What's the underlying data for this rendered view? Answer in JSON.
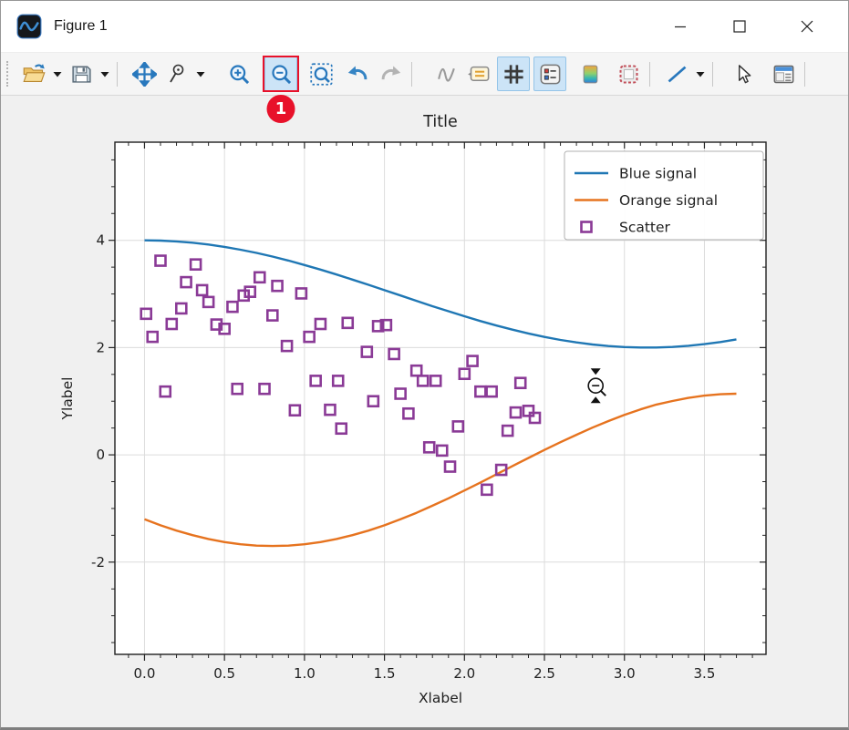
{
  "window": {
    "title": "Figure 1",
    "icon": "app-logo-icon",
    "controls": [
      {
        "name": "minimize-button",
        "icon": "minimize-icon"
      },
      {
        "name": "maximize-button",
        "icon": "maximize-icon"
      },
      {
        "name": "close-button",
        "icon": "close-icon"
      }
    ]
  },
  "toolbar": {
    "buttons": [
      {
        "type": "grip",
        "name": "toolbar-grip"
      },
      {
        "type": "button",
        "name": "open-figure-button",
        "icon": "folder-open-icon"
      },
      {
        "type": "arrow",
        "name": "open-figure-dropdown",
        "icon": "chevron-down-icon"
      },
      {
        "type": "button",
        "name": "save-figure-button",
        "icon": "save-icon"
      },
      {
        "type": "arrow",
        "name": "save-figure-dropdown",
        "icon": "chevron-down-icon"
      },
      {
        "type": "separator"
      },
      {
        "type": "button",
        "name": "pan-button",
        "icon": "pan-icon"
      },
      {
        "type": "button",
        "name": "zoom-tool-button",
        "icon": "zoom-rect-icon"
      },
      {
        "type": "arrow",
        "name": "zoom-tool-dropdown",
        "icon": "chevron-down-icon"
      },
      {
        "type": "button",
        "name": "zoom-in-button",
        "icon": "zoom-in-icon"
      },
      {
        "type": "button",
        "name": "zoom-out-button",
        "icon": "zoom-out-icon",
        "active": true,
        "annotated": true
      },
      {
        "type": "button",
        "name": "zoom-fit-button",
        "icon": "zoom-fit-icon"
      },
      {
        "type": "button",
        "name": "undo-button",
        "icon": "undo-icon"
      },
      {
        "type": "button",
        "name": "redo-button",
        "icon": "redo-icon",
        "disabled": true
      },
      {
        "type": "separator"
      },
      {
        "type": "button",
        "name": "curve-tool-button",
        "icon": "curve-icon",
        "disabled": true
      },
      {
        "type": "button",
        "name": "annotation-tool-button",
        "icon": "callout-icon"
      },
      {
        "type": "button",
        "name": "grid-toggle-button",
        "icon": "grid-icon",
        "active": true
      },
      {
        "type": "button",
        "name": "legend-toggle-button",
        "icon": "legend-icon",
        "active": true
      },
      {
        "type": "button",
        "name": "colormap-button",
        "icon": "colormap-icon"
      },
      {
        "type": "button",
        "name": "frame-style-button",
        "icon": "frame-icon"
      },
      {
        "type": "separator"
      },
      {
        "type": "button",
        "name": "line-style-button",
        "icon": "line-icon"
      },
      {
        "type": "arrow",
        "name": "line-style-dropdown",
        "icon": "chevron-down-icon"
      },
      {
        "type": "separator"
      },
      {
        "type": "button",
        "name": "select-pointer-button",
        "icon": "pointer-icon"
      },
      {
        "type": "button",
        "name": "figure-options-button",
        "icon": "panel-icon"
      },
      {
        "type": "separator"
      }
    ]
  },
  "annotation": {
    "step_label": "1",
    "color": "#e8112a"
  },
  "chart_data": {
    "type": "line",
    "title": "Title",
    "xlabel": "Xlabel",
    "ylabel": "Ylabel",
    "xlim": [
      -0.185,
      3.885
    ],
    "ylim": [
      -3.72,
      5.83
    ],
    "grid": true,
    "xticks": {
      "values": [
        0,
        0.5,
        1,
        1.5,
        2,
        2.5,
        3,
        3.5
      ],
      "labels": [
        "0.0",
        "0.5",
        "1.0",
        "1.5",
        "2.0",
        "2.5",
        "3.0",
        "3.5"
      ],
      "minor_step": 0.1
    },
    "yticks": {
      "values": [
        -2,
        0,
        2,
        4
      ],
      "labels": [
        "-2",
        "0",
        "2",
        "4"
      ],
      "minor_step": 0.5
    },
    "legend": {
      "position": "upper right",
      "entries": [
        "Blue signal",
        "Orange signal",
        "Scatter"
      ]
    },
    "series": [
      {
        "name": "Blue signal",
        "type": "line",
        "color": "#1f77b4",
        "x_start": 0,
        "x_step": 0.1,
        "y": [
          4.0,
          3.995,
          3.98,
          3.955,
          3.921,
          3.878,
          3.825,
          3.765,
          3.697,
          3.622,
          3.54,
          3.454,
          3.362,
          3.267,
          3.17,
          3.071,
          2.971,
          2.871,
          2.772,
          2.677,
          2.584,
          2.495,
          2.411,
          2.334,
          2.263,
          2.199,
          2.143,
          2.096,
          2.058,
          2.029,
          2.01,
          2.001,
          2.002,
          2.012,
          2.033,
          2.064,
          2.103,
          2.152
        ]
      },
      {
        "name": "Orange signal",
        "type": "line",
        "color": "#e6731f",
        "x_start": 0,
        "x_step": 0.1,
        "y": [
          -1.202,
          -1.313,
          -1.412,
          -1.498,
          -1.569,
          -1.626,
          -1.667,
          -1.692,
          -1.7,
          -1.692,
          -1.667,
          -1.626,
          -1.569,
          -1.498,
          -1.412,
          -1.313,
          -1.202,
          -1.081,
          -0.949,
          -0.81,
          -0.664,
          -0.515,
          -0.363,
          -0.21,
          -0.058,
          0.091,
          0.236,
          0.374,
          0.508,
          0.63,
          0.745,
          0.847,
          0.937,
          1.004,
          1.062,
          1.104,
          1.13,
          1.14
        ]
      },
      {
        "name": "Scatter",
        "type": "scatter",
        "color": "#8a3a96",
        "points": [
          [
            0.1,
            3.62
          ],
          [
            0.32,
            3.55
          ],
          [
            0.26,
            3.22
          ],
          [
            0.36,
            3.07
          ],
          [
            0.4,
            2.85
          ],
          [
            0.23,
            2.73
          ],
          [
            0.01,
            2.63
          ],
          [
            0.17,
            2.44
          ],
          [
            0.05,
            2.2
          ],
          [
            0.45,
            2.43
          ],
          [
            0.5,
            2.35
          ],
          [
            0.55,
            2.76
          ],
          [
            0.62,
            2.97
          ],
          [
            0.66,
            3.04
          ],
          [
            0.72,
            3.31
          ],
          [
            0.83,
            3.15
          ],
          [
            0.98,
            3.01
          ],
          [
            0.8,
            2.6
          ],
          [
            1.03,
            2.2
          ],
          [
            1.1,
            2.44
          ],
          [
            1.27,
            2.46
          ],
          [
            0.89,
            2.03
          ],
          [
            0.13,
            1.18
          ],
          [
            0.58,
            1.23
          ],
          [
            0.75,
            1.23
          ],
          [
            1.07,
            1.38
          ],
          [
            1.21,
            1.38
          ],
          [
            0.94,
            0.83
          ],
          [
            1.16,
            0.84
          ],
          [
            1.23,
            0.49
          ],
          [
            1.46,
            2.4
          ],
          [
            1.51,
            2.42
          ],
          [
            1.39,
            1.92
          ],
          [
            1.56,
            1.88
          ],
          [
            1.7,
            1.57
          ],
          [
            1.74,
            1.38
          ],
          [
            1.82,
            1.38
          ],
          [
            1.6,
            1.14
          ],
          [
            1.43,
            1.0
          ],
          [
            1.65,
            0.77
          ],
          [
            2.05,
            1.75
          ],
          [
            2.0,
            1.51
          ],
          [
            2.1,
            1.18
          ],
          [
            2.17,
            1.18
          ],
          [
            2.35,
            1.34
          ],
          [
            1.96,
            0.53
          ],
          [
            2.32,
            0.79
          ],
          [
            2.4,
            0.82
          ],
          [
            2.44,
            0.69
          ],
          [
            2.27,
            0.45
          ],
          [
            1.78,
            0.14
          ],
          [
            1.86,
            0.08
          ],
          [
            1.91,
            -0.22
          ],
          [
            2.23,
            -0.28
          ],
          [
            2.14,
            -0.65
          ]
        ]
      }
    ],
    "cursor": {
      "name": "zoom-out-cursor",
      "x": 2.82,
      "y": 1.29
    }
  }
}
